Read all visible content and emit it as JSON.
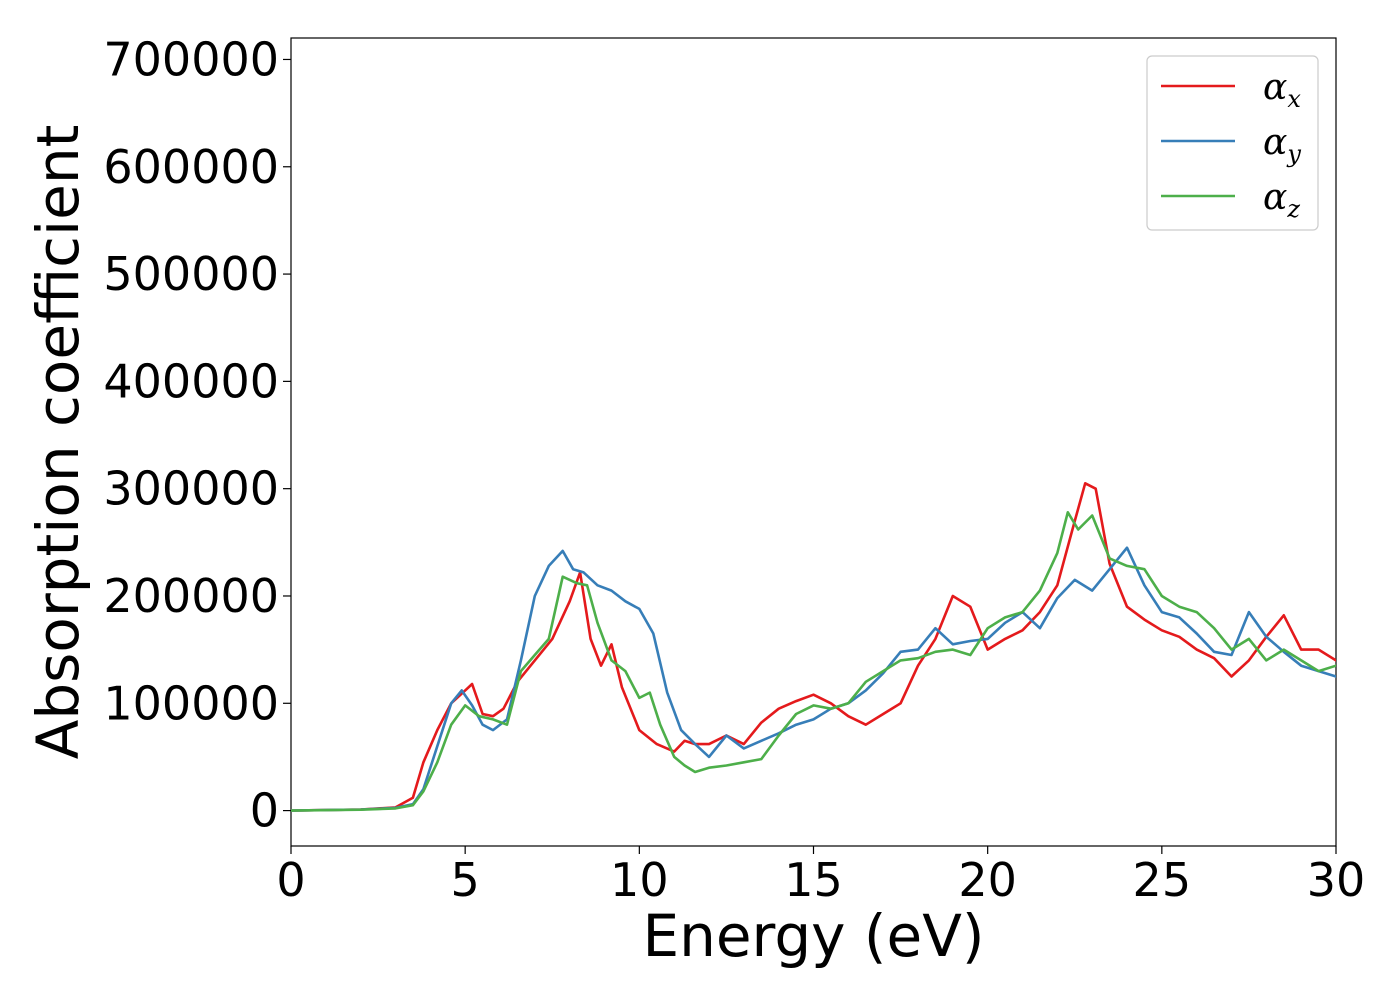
{
  "chart_data": {
    "type": "line",
    "title": "",
    "xlabel": "Energy (eV)",
    "ylabel": "Absorption coefficient",
    "xlim": [
      0,
      30
    ],
    "ylim": [
      -33000,
      720000
    ],
    "xticks": [
      0,
      5,
      10,
      15,
      20,
      25,
      30
    ],
    "yticks": [
      0,
      100000,
      200000,
      300000,
      400000,
      500000,
      600000,
      700000
    ],
    "grid": false,
    "legend_position": "top-right",
    "series": [
      {
        "name": "α",
        "name_sub": "x",
        "color": "#e41a1c",
        "x": [
          0,
          2,
          3,
          3.5,
          3.8,
          4.2,
          4.6,
          5.0,
          5.2,
          5.5,
          5.8,
          6.1,
          6.5,
          7.0,
          7.5,
          8.0,
          8.3,
          8.6,
          8.9,
          9.2,
          9.5,
          10.0,
          10.5,
          11.0,
          11.3,
          11.6,
          12.0,
          12.5,
          13.0,
          13.5,
          14.0,
          14.5,
          15.0,
          15.5,
          16.0,
          16.5,
          17.0,
          17.5,
          18.0,
          18.5,
          19.0,
          19.5,
          20.0,
          20.5,
          21.0,
          21.5,
          22.0,
          22.5,
          22.8,
          23.1,
          23.5,
          24.0,
          24.5,
          25.0,
          25.5,
          26.0,
          26.5,
          27.0,
          27.5,
          28.0,
          28.5,
          29.0,
          29.5,
          30.0
        ],
        "y": [
          0,
          1000,
          3000,
          12000,
          45000,
          75000,
          100000,
          112000,
          118000,
          90000,
          88000,
          95000,
          120000,
          140000,
          160000,
          195000,
          222000,
          160000,
          135000,
          155000,
          115000,
          75000,
          62000,
          55000,
          65000,
          62000,
          62000,
          70000,
          62000,
          82000,
          95000,
          102000,
          108000,
          100000,
          88000,
          80000,
          90000,
          100000,
          135000,
          160000,
          200000,
          190000,
          150000,
          160000,
          168000,
          185000,
          210000,
          270000,
          305000,
          300000,
          230000,
          190000,
          178000,
          168000,
          162000,
          150000,
          142000,
          125000,
          140000,
          162000,
          182000,
          150000,
          150000,
          140000
        ]
      },
      {
        "name": "α",
        "name_sub": "y",
        "color": "#377eb8",
        "x": [
          0,
          2,
          3,
          3.5,
          3.8,
          4.2,
          4.6,
          4.9,
          5.2,
          5.5,
          5.8,
          6.2,
          6.6,
          7.0,
          7.4,
          7.8,
          8.1,
          8.4,
          8.8,
          9.2,
          9.6,
          10.0,
          10.4,
          10.8,
          11.2,
          11.6,
          12.0,
          12.5,
          13.0,
          13.5,
          14.0,
          14.5,
          15.0,
          15.5,
          16.0,
          16.5,
          17.0,
          17.5,
          18.0,
          18.5,
          19.0,
          19.5,
          20.0,
          20.5,
          21.0,
          21.5,
          22.0,
          22.5,
          23.0,
          23.5,
          24.0,
          24.5,
          25.0,
          25.5,
          26.0,
          26.5,
          27.0,
          27.5,
          28.0,
          28.5,
          29.0,
          29.5,
          30.0
        ],
        "y": [
          0,
          1000,
          2500,
          6000,
          20000,
          60000,
          100000,
          112000,
          98000,
          80000,
          75000,
          85000,
          140000,
          200000,
          228000,
          242000,
          225000,
          222000,
          210000,
          205000,
          195000,
          188000,
          165000,
          110000,
          75000,
          62000,
          50000,
          70000,
          58000,
          65000,
          72000,
          80000,
          85000,
          95000,
          100000,
          112000,
          128000,
          148000,
          150000,
          170000,
          155000,
          158000,
          160000,
          175000,
          185000,
          170000,
          198000,
          215000,
          205000,
          225000,
          245000,
          210000,
          185000,
          180000,
          165000,
          148000,
          145000,
          185000,
          162000,
          148000,
          135000,
          130000,
          125000
        ]
      },
      {
        "name": "α",
        "name_sub": "z",
        "color": "#4daf4a",
        "x": [
          0,
          2,
          3,
          3.5,
          3.8,
          4.2,
          4.6,
          5.0,
          5.4,
          5.8,
          6.2,
          6.6,
          7.0,
          7.4,
          7.8,
          8.2,
          8.5,
          8.8,
          9.2,
          9.6,
          10.0,
          10.3,
          10.6,
          11.0,
          11.3,
          11.6,
          12.0,
          12.5,
          13.0,
          13.5,
          14.0,
          14.5,
          15.0,
          15.5,
          16.0,
          16.5,
          17.0,
          17.5,
          18.0,
          18.5,
          19.0,
          19.5,
          20.0,
          20.5,
          21.0,
          21.5,
          22.0,
          22.3,
          22.6,
          23.0,
          23.5,
          24.0,
          24.5,
          25.0,
          25.5,
          26.0,
          26.5,
          27.0,
          27.5,
          28.0,
          28.5,
          29.0,
          29.5,
          30.0
        ],
        "y": [
          0,
          800,
          2000,
          5000,
          18000,
          45000,
          80000,
          98000,
          88000,
          85000,
          80000,
          130000,
          145000,
          160000,
          218000,
          212000,
          210000,
          175000,
          140000,
          130000,
          105000,
          110000,
          80000,
          50000,
          42000,
          36000,
          40000,
          42000,
          45000,
          48000,
          70000,
          90000,
          98000,
          95000,
          100000,
          120000,
          130000,
          140000,
          142000,
          148000,
          150000,
          145000,
          170000,
          180000,
          185000,
          205000,
          240000,
          278000,
          262000,
          275000,
          235000,
          228000,
          225000,
          200000,
          190000,
          185000,
          170000,
          150000,
          160000,
          140000,
          150000,
          140000,
          130000,
          135000
        ]
      }
    ]
  }
}
